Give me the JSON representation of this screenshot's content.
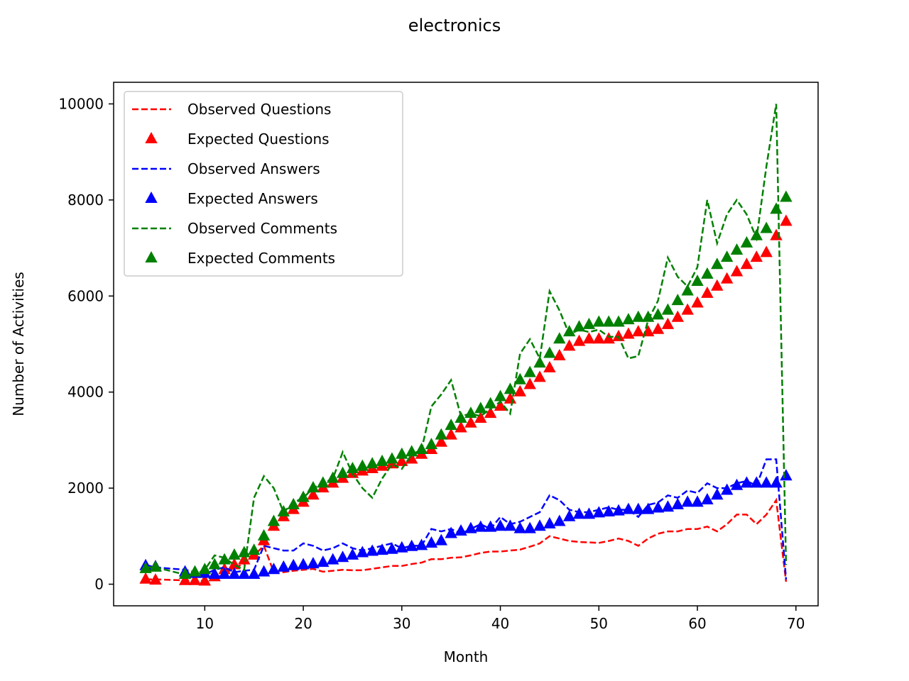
{
  "chart_data": {
    "type": "line",
    "title": "electronics",
    "xlabel": "Month",
    "ylabel": "Number of Activities",
    "xlim": [
      0.75,
      72.25
    ],
    "ylim": [
      -450,
      10450
    ],
    "xticks": [
      10,
      20,
      30,
      40,
      50,
      60,
      70
    ],
    "yticks": [
      0,
      2000,
      4000,
      6000,
      8000,
      10000
    ],
    "grid": false,
    "legend_position": "upper-left",
    "x": [
      4,
      5,
      8,
      9,
      10,
      11,
      12,
      13,
      14,
      15,
      16,
      17,
      18,
      19,
      20,
      21,
      22,
      23,
      24,
      25,
      26,
      27,
      28,
      29,
      30,
      31,
      32,
      33,
      34,
      35,
      36,
      37,
      38,
      39,
      40,
      41,
      42,
      43,
      44,
      45,
      46,
      47,
      48,
      49,
      50,
      51,
      52,
      53,
      54,
      55,
      56,
      57,
      58,
      59,
      60,
      61,
      62,
      63,
      64,
      65,
      66,
      67,
      68,
      69
    ],
    "series": [
      {
        "name": "Observed Questions",
        "color": "#ff0000",
        "style": "dashed",
        "values": [
          100,
          100,
          80,
          70,
          70,
          140,
          200,
          350,
          420,
          600,
          800,
          250,
          250,
          280,
          300,
          320,
          260,
          280,
          300,
          290,
          290,
          320,
          350,
          380,
          380,
          420,
          450,
          520,
          520,
          550,
          560,
          600,
          650,
          680,
          680,
          700,
          720,
          780,
          850,
          1000,
          950,
          900,
          880,
          870,
          860,
          900,
          950,
          900,
          800,
          950,
          1050,
          1100,
          1100,
          1150,
          1150,
          1200,
          1100,
          1250,
          1450,
          1450,
          1250,
          1450,
          1750,
          50
        ]
      },
      {
        "name": "Expected Questions",
        "color": "#ff0000",
        "style": "triangle",
        "values": [
          100,
          80,
          70,
          70,
          60,
          150,
          300,
          400,
          500,
          600,
          900,
          1200,
          1400,
          1550,
          1700,
          1850,
          2000,
          2100,
          2200,
          2300,
          2350,
          2400,
          2450,
          2500,
          2550,
          2600,
          2700,
          2800,
          2950,
          3100,
          3250,
          3350,
          3450,
          3550,
          3700,
          3850,
          4000,
          4150,
          4300,
          4500,
          4750,
          4950,
          5050,
          5100,
          5100,
          5100,
          5150,
          5200,
          5250,
          5250,
          5300,
          5400,
          5550,
          5700,
          5850,
          6050,
          6200,
          6350,
          6500,
          6650,
          6800,
          6900,
          7250,
          7550
        ]
      },
      {
        "name": "Observed Answers",
        "color": "#0000ff",
        "style": "dashed",
        "values": [
          400,
          350,
          300,
          250,
          200,
          300,
          350,
          250,
          280,
          300,
          800,
          750,
          700,
          700,
          850,
          800,
          700,
          750,
          850,
          750,
          700,
          750,
          800,
          850,
          750,
          800,
          800,
          1150,
          1100,
          1150,
          1050,
          1150,
          1250,
          1150,
          1400,
          1250,
          1300,
          1400,
          1500,
          1850,
          1750,
          1550,
          1500,
          1500,
          1550,
          1600,
          1550,
          1550,
          1400,
          1650,
          1700,
          1850,
          1800,
          1950,
          1900,
          2100,
          2000,
          2000,
          2100,
          2150,
          2050,
          2600,
          2600,
          100
        ]
      },
      {
        "name": "Expected Answers",
        "color": "#0000ff",
        "style": "triangle",
        "values": [
          380,
          360,
          250,
          220,
          220,
          200,
          200,
          200,
          200,
          200,
          250,
          300,
          350,
          380,
          400,
          420,
          450,
          500,
          550,
          600,
          650,
          680,
          700,
          720,
          750,
          780,
          800,
          850,
          900,
          1050,
          1100,
          1150,
          1180,
          1180,
          1200,
          1200,
          1150,
          1150,
          1200,
          1250,
          1300,
          1400,
          1450,
          1450,
          1480,
          1500,
          1520,
          1550,
          1550,
          1550,
          1580,
          1600,
          1650,
          1700,
          1700,
          1750,
          1850,
          1950,
          2050,
          2100,
          2100,
          2100,
          2100,
          2250
        ]
      },
      {
        "name": "Observed Comments",
        "color": "#008000",
        "style": "dashed",
        "values": [
          350,
          350,
          200,
          200,
          300,
          600,
          550,
          400,
          300,
          1800,
          2250,
          2000,
          1500,
          1700,
          1800,
          2000,
          2100,
          2200,
          2750,
          2300,
          2000,
          1800,
          2200,
          2500,
          2400,
          2700,
          2800,
          3700,
          3950,
          4250,
          3500,
          3550,
          3500,
          3650,
          3800,
          3550,
          4800,
          5100,
          4700,
          6100,
          5700,
          5200,
          5300,
          5250,
          5300,
          5150,
          5150,
          4700,
          4750,
          5500,
          5900,
          6800,
          6400,
          6200,
          6600,
          8000,
          7100,
          7700,
          8000,
          7700,
          7200,
          8700,
          10000,
          400
        ]
      },
      {
        "name": "Expected Comments",
        "color": "#008000",
        "style": "triangle",
        "values": [
          320,
          350,
          200,
          250,
          300,
          400,
          500,
          600,
          650,
          700,
          1000,
          1300,
          1500,
          1650,
          1800,
          2000,
          2100,
          2200,
          2300,
          2400,
          2450,
          2500,
          2550,
          2600,
          2700,
          2750,
          2800,
          2900,
          3100,
          3300,
          3450,
          3550,
          3650,
          3750,
          3900,
          4050,
          4250,
          4400,
          4600,
          4800,
          5100,
          5250,
          5350,
          5400,
          5450,
          5450,
          5450,
          5500,
          5550,
          5550,
          5600,
          5700,
          5900,
          6100,
          6300,
          6450,
          6650,
          6800,
          6950,
          7100,
          7250,
          7400,
          7800,
          8050
        ]
      }
    ]
  }
}
